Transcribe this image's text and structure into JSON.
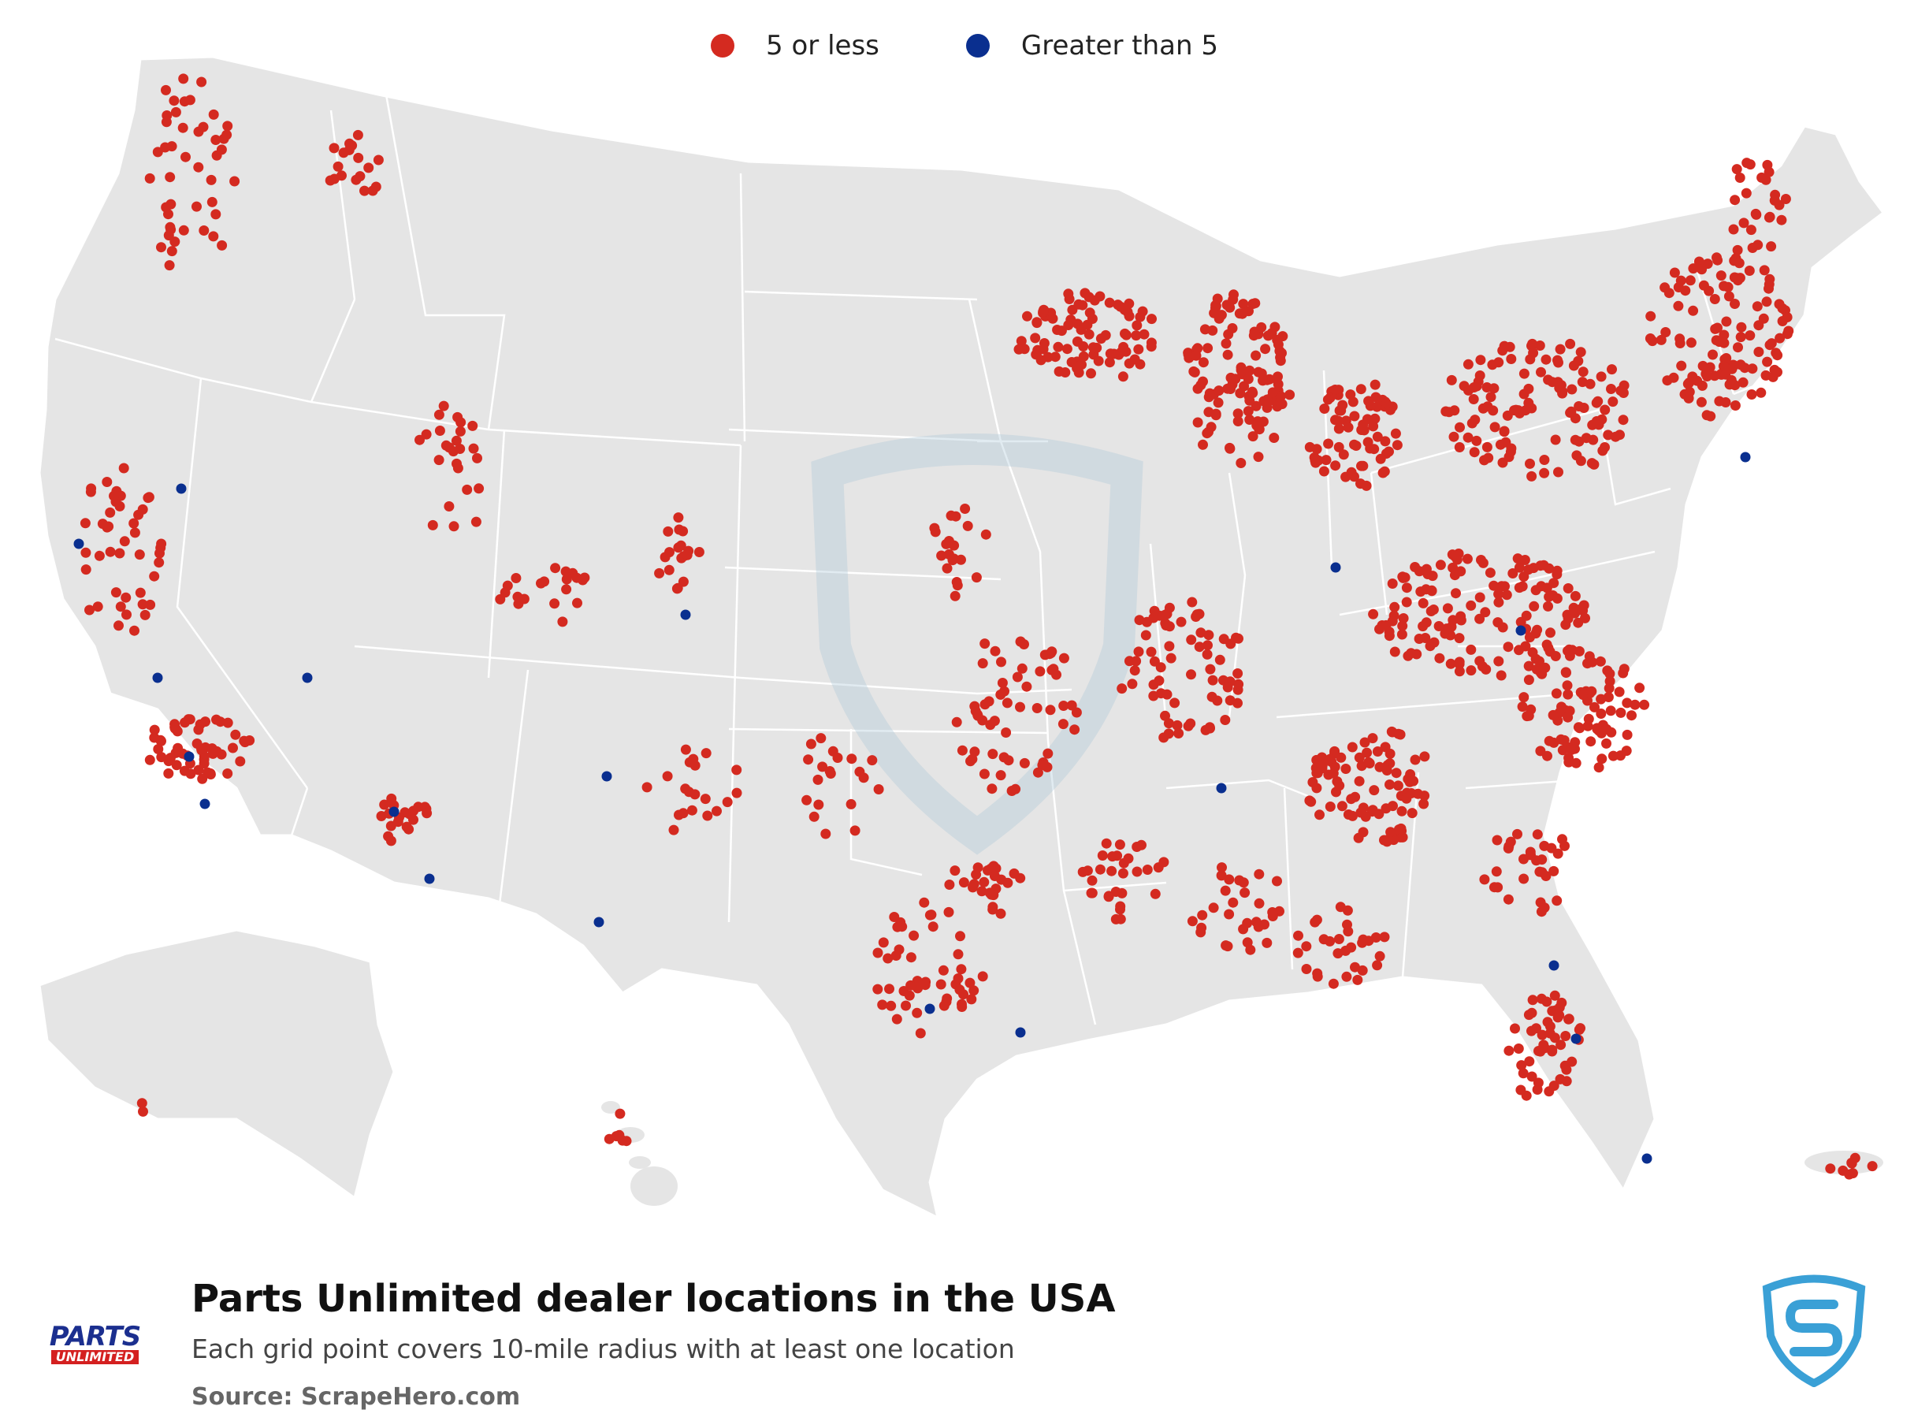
{
  "legend": [
    {
      "label": "5 or less",
      "color": "#d42a20"
    },
    {
      "label": "Greater than 5",
      "color": "#0a2f8f"
    }
  ],
  "title": "Parts Unlimited dealer locations in the USA",
  "subtitle": "Each grid point covers 10-mile radius with at least one location",
  "source": "Source: ScrapeHero.com",
  "brand_logo": {
    "line1": "PARTS",
    "line2": "UNLIMITED"
  },
  "map": {
    "land_color": "#e5e5e5",
    "border_color": "#ffffff",
    "watermark": "shield-watermark"
  }
}
